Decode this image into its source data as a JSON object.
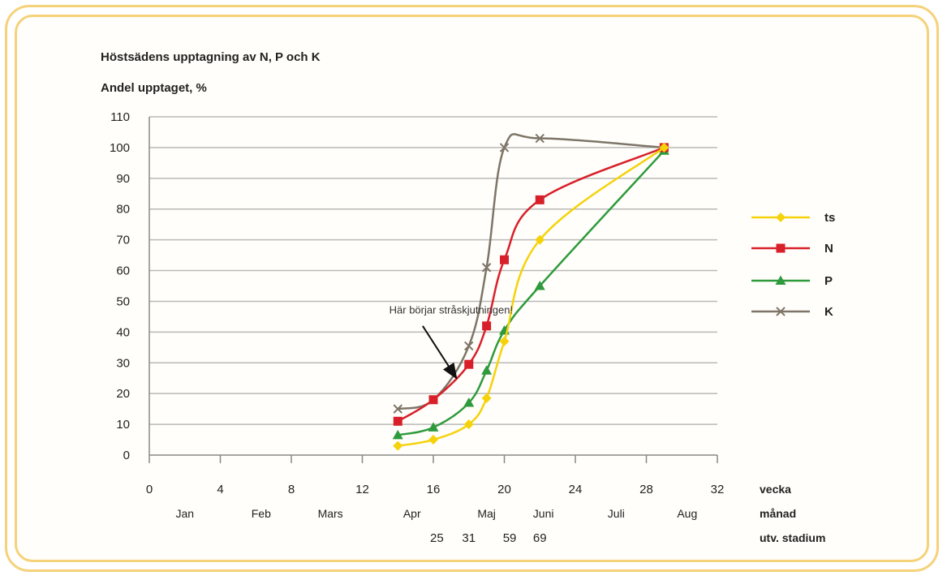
{
  "chart_data": {
    "type": "line",
    "title": "Höstsädens upptagning av N, P och K",
    "ylabel": "Andel upptaget, %",
    "ylim": [
      0,
      110
    ],
    "xlim": [
      0,
      32
    ],
    "yticks": [
      0,
      10,
      20,
      30,
      40,
      50,
      60,
      70,
      80,
      90,
      100,
      110
    ],
    "xticks": [
      0,
      4,
      8,
      12,
      16,
      20,
      24,
      28,
      32
    ],
    "grid": true,
    "legend_placement": "right",
    "x_row_labels": [
      "vecka",
      "månad",
      "utv. stadium"
    ],
    "months": [
      {
        "label": "Jan",
        "x": 2
      },
      {
        "label": "Feb",
        "x": 6.3
      },
      {
        "label": "Mars",
        "x": 10.2
      },
      {
        "label": "Apr",
        "x": 14.8
      },
      {
        "label": "Maj",
        "x": 19
      },
      {
        "label": "Juni",
        "x": 22.2
      },
      {
        "label": "Juli",
        "x": 26.3
      },
      {
        "label": "Aug",
        "x": 30.3
      }
    ],
    "stages": [
      {
        "label": "25",
        "x": 16.2
      },
      {
        "label": "31",
        "x": 18
      },
      {
        "label": "59",
        "x": 20.3
      },
      {
        "label": "69",
        "x": 22
      }
    ],
    "annotation": {
      "text": "Här börjar stråskjutningen!",
      "text_x": 17,
      "text_y": 46,
      "arrow_to_x": 17.3,
      "arrow_to_y": 25
    },
    "series": [
      {
        "name": "ts",
        "color": "#f5d20a",
        "marker": "diamond",
        "x": [
          14,
          16,
          18,
          19,
          20,
          22,
          29
        ],
        "y": [
          3,
          5,
          10,
          18.5,
          37,
          70,
          100
        ]
      },
      {
        "name": "N",
        "color": "#d8202a",
        "marker": "square",
        "x": [
          14,
          16,
          18,
          19,
          20,
          22,
          29
        ],
        "y": [
          11,
          18,
          29.5,
          42,
          63.5,
          83,
          100
        ]
      },
      {
        "name": "P",
        "color": "#2e9a3c",
        "marker": "triangle",
        "x": [
          14,
          16,
          18,
          19,
          20,
          22,
          29
        ],
        "y": [
          6.5,
          9,
          17,
          27.5,
          40.5,
          55,
          99
        ]
      },
      {
        "name": "K",
        "color": "#7e7568",
        "marker": "x",
        "x": [
          14,
          16,
          18,
          19,
          20,
          22,
          29
        ],
        "y": [
          15,
          18,
          35.5,
          61,
          100,
          103,
          100
        ]
      }
    ]
  }
}
